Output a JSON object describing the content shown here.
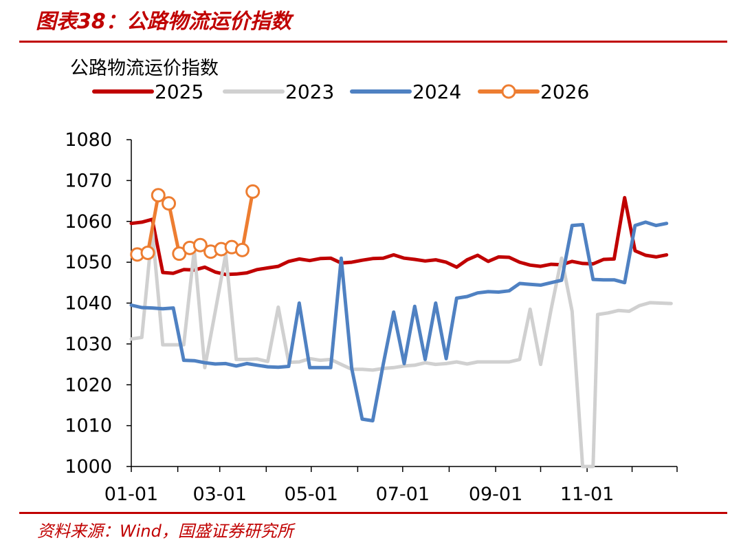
{
  "figure": {
    "title": "图表38：公路物流运价指数",
    "source": "资料来源：Wind，国盛证券研究所"
  },
  "colors": {
    "brand_red": "#c00000",
    "s2025": "#c00000",
    "s2023": "#d0d0d0",
    "s2024": "#4f81c2",
    "s2026": "#ed7d31"
  },
  "chart_data": {
    "type": "line",
    "title": "公路物流运价指数",
    "xlabel": "",
    "ylabel": "",
    "ylim": [
      1000,
      1080
    ],
    "yticks": [
      1000,
      1010,
      1020,
      1030,
      1040,
      1050,
      1060,
      1070,
      1080
    ],
    "xlim": [
      "01-01",
      "12-31"
    ],
    "xticks": [
      "01-01",
      "03-01",
      "05-01",
      "07-01",
      "09-01",
      "11-01"
    ],
    "grid": false,
    "legend": "top",
    "series": [
      {
        "name": "2025",
        "color": "#c00000",
        "markers": false,
        "points": [
          [
            "01-01",
            1059.5
          ],
          [
            "01-08",
            1059.8
          ],
          [
            "01-15",
            1060.5
          ],
          [
            "01-22",
            1047.5
          ],
          [
            "01-29",
            1047.3
          ],
          [
            "02-05",
            1048.2
          ],
          [
            "02-12",
            1048.1
          ],
          [
            "02-19",
            1048.8
          ],
          [
            "02-26",
            1047.6
          ],
          [
            "03-05",
            1047.0
          ],
          [
            "03-12",
            1047.1
          ],
          [
            "03-19",
            1047.4
          ],
          [
            "03-26",
            1048.2
          ],
          [
            "04-02",
            1048.6
          ],
          [
            "04-09",
            1049.0
          ],
          [
            "04-16",
            1050.2
          ],
          [
            "04-23",
            1050.8
          ],
          [
            "04-30",
            1050.4
          ],
          [
            "05-07",
            1050.9
          ],
          [
            "05-14",
            1051.0
          ],
          [
            "05-21",
            1049.8
          ],
          [
            "05-28",
            1050.0
          ],
          [
            "06-04",
            1050.5
          ],
          [
            "06-11",
            1050.9
          ],
          [
            "06-18",
            1051.0
          ],
          [
            "06-25",
            1051.8
          ],
          [
            "07-02",
            1051.0
          ],
          [
            "07-09",
            1050.7
          ],
          [
            "07-16",
            1050.3
          ],
          [
            "07-23",
            1050.6
          ],
          [
            "07-30",
            1050.0
          ],
          [
            "08-06",
            1048.8
          ],
          [
            "08-13",
            1050.6
          ],
          [
            "08-20",
            1051.7
          ],
          [
            "08-27",
            1050.2
          ],
          [
            "09-03",
            1051.3
          ],
          [
            "09-10",
            1051.2
          ],
          [
            "09-17",
            1050.0
          ],
          [
            "09-24",
            1049.3
          ],
          [
            "10-01",
            1049.0
          ],
          [
            "10-08",
            1049.5
          ],
          [
            "10-15",
            1049.4
          ],
          [
            "10-22",
            1050.2
          ],
          [
            "10-29",
            1049.7
          ],
          [
            "11-05",
            1049.6
          ],
          [
            "11-12",
            1050.7
          ],
          [
            "11-19",
            1050.8
          ],
          [
            "11-26",
            1065.8
          ],
          [
            "12-03",
            1052.8
          ],
          [
            "12-10",
            1051.7
          ],
          [
            "12-17",
            1051.3
          ],
          [
            "12-24",
            1051.8
          ]
        ]
      },
      {
        "name": "2023",
        "color": "#d0d0d0",
        "markers": false,
        "points": [
          [
            "01-01",
            1031.2
          ],
          [
            "01-08",
            1031.6
          ],
          [
            "01-15",
            1058.0
          ],
          [
            "01-22",
            1029.8
          ],
          [
            "01-29",
            1029.8
          ],
          [
            "02-05",
            1029.8
          ],
          [
            "02-12",
            1053.0
          ],
          [
            "02-19",
            1024.2
          ],
          [
            "02-26",
            1038.0
          ],
          [
            "03-05",
            1052.0
          ],
          [
            "03-12",
            1026.2
          ],
          [
            "03-19",
            1026.2
          ],
          [
            "03-26",
            1026.3
          ],
          [
            "04-02",
            1025.7
          ],
          [
            "04-09",
            1039.0
          ],
          [
            "04-16",
            1025.5
          ],
          [
            "04-23",
            1025.6
          ],
          [
            "04-30",
            1026.4
          ],
          [
            "05-07",
            1026.0
          ],
          [
            "05-14",
            1026.2
          ],
          [
            "05-21",
            1025.0
          ],
          [
            "05-28",
            1023.8
          ],
          [
            "06-04",
            1023.8
          ],
          [
            "06-11",
            1023.6
          ],
          [
            "06-18",
            1024.0
          ],
          [
            "06-25",
            1024.2
          ],
          [
            "07-02",
            1024.6
          ],
          [
            "07-09",
            1024.8
          ],
          [
            "07-16",
            1025.4
          ],
          [
            "07-23",
            1025.0
          ],
          [
            "07-30",
            1025.2
          ],
          [
            "08-06",
            1025.6
          ],
          [
            "08-13",
            1025.1
          ],
          [
            "08-20",
            1025.6
          ],
          [
            "08-27",
            1025.6
          ],
          [
            "09-03",
            1025.6
          ],
          [
            "09-10",
            1025.6
          ],
          [
            "09-17",
            1026.2
          ],
          [
            "09-24",
            1038.5
          ],
          [
            "10-01",
            1025.0
          ],
          [
            "10-08",
            1038.5
          ],
          [
            "10-15",
            1051.0
          ],
          [
            "10-22",
            1038.0
          ],
          [
            "10-29",
            1000.0
          ],
          [
            "11-05",
            1000.0
          ],
          [
            "11-08",
            1037.2
          ],
          [
            "11-15",
            1037.6
          ],
          [
            "11-22",
            1038.2
          ],
          [
            "11-29",
            1038.0
          ],
          [
            "12-06",
            1039.4
          ],
          [
            "12-13",
            1040.1
          ],
          [
            "12-20",
            1040.0
          ],
          [
            "12-27",
            1039.9
          ]
        ]
      },
      {
        "name": "2024",
        "color": "#4f81c2",
        "markers": false,
        "points": [
          [
            "01-01",
            1039.5
          ],
          [
            "01-08",
            1038.9
          ],
          [
            "01-15",
            1038.8
          ],
          [
            "01-22",
            1038.6
          ],
          [
            "01-29",
            1038.8
          ],
          [
            "02-05",
            1026.0
          ],
          [
            "02-12",
            1025.9
          ],
          [
            "02-19",
            1025.4
          ],
          [
            "02-26",
            1025.1
          ],
          [
            "03-05",
            1025.2
          ],
          [
            "03-12",
            1024.6
          ],
          [
            "03-19",
            1025.2
          ],
          [
            "03-26",
            1024.8
          ],
          [
            "04-02",
            1024.4
          ],
          [
            "04-09",
            1024.3
          ],
          [
            "04-16",
            1024.5
          ],
          [
            "04-23",
            1040.0
          ],
          [
            "04-30",
            1024.2
          ],
          [
            "05-07",
            1024.2
          ],
          [
            "05-14",
            1024.2
          ],
          [
            "05-21",
            1051.0
          ],
          [
            "05-28",
            1024.0
          ],
          [
            "06-04",
            1011.6
          ],
          [
            "06-11",
            1011.2
          ],
          [
            "06-18",
            1025.0
          ],
          [
            "06-25",
            1037.8
          ],
          [
            "07-02",
            1025.2
          ],
          [
            "07-09",
            1039.2
          ],
          [
            "07-16",
            1026.2
          ],
          [
            "07-23",
            1040.0
          ],
          [
            "07-30",
            1026.4
          ],
          [
            "08-06",
            1041.2
          ],
          [
            "08-13",
            1041.6
          ],
          [
            "08-20",
            1042.5
          ],
          [
            "08-27",
            1042.8
          ],
          [
            "09-03",
            1042.7
          ],
          [
            "09-10",
            1043.0
          ],
          [
            "09-17",
            1044.8
          ],
          [
            "09-24",
            1044.6
          ],
          [
            "10-01",
            1044.4
          ],
          [
            "10-08",
            1045.0
          ],
          [
            "10-15",
            1045.6
          ],
          [
            "10-22",
            1059.0
          ],
          [
            "10-29",
            1059.2
          ],
          [
            "11-05",
            1045.8
          ],
          [
            "11-12",
            1045.7
          ],
          [
            "11-19",
            1045.7
          ],
          [
            "11-26",
            1045.0
          ],
          [
            "12-03",
            1059.0
          ],
          [
            "12-10",
            1059.8
          ],
          [
            "12-17",
            1059.0
          ],
          [
            "12-24",
            1059.5
          ]
        ]
      },
      {
        "name": "2026",
        "color": "#ed7d31",
        "markers": true,
        "points": [
          [
            "01-05",
            1051.9
          ],
          [
            "01-12",
            1052.3
          ],
          [
            "01-19",
            1066.4
          ],
          [
            "01-26",
            1064.4
          ],
          [
            "02-02",
            1052.1
          ],
          [
            "02-09",
            1053.5
          ],
          [
            "02-16",
            1054.2
          ],
          [
            "02-23",
            1052.6
          ],
          [
            "03-02",
            1053.2
          ],
          [
            "03-09",
            1053.7
          ],
          [
            "03-16",
            1053.0
          ],
          [
            "03-23",
            1067.3
          ]
        ]
      }
    ]
  }
}
